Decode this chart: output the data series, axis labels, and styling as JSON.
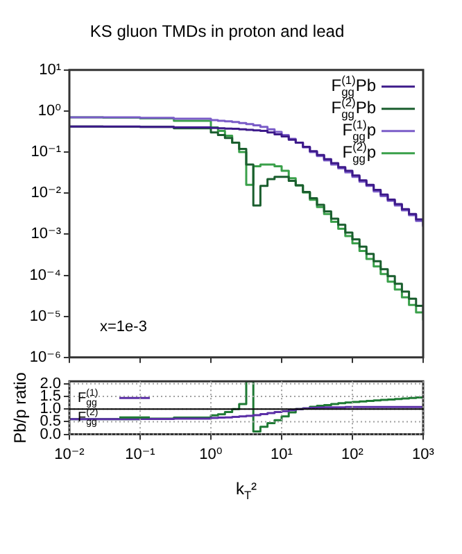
{
  "chart_data": [
    {
      "type": "step",
      "title": "KS gluon TMDs in proton and lead",
      "x": [
        0.01,
        0.03,
        0.1,
        0.3,
        1,
        1.26,
        1.58,
        2,
        2.51,
        3.16,
        3.98,
        5.01,
        6.31,
        7.94,
        10,
        12.6,
        15.8,
        20,
        25.1,
        31.6,
        39.8,
        50.1,
        63.1,
        79.4,
        100,
        126,
        158,
        200,
        251,
        316,
        398,
        501,
        631,
        794,
        1000
      ],
      "series": [
        {
          "name": "F$_{gg}$$^{(1)}$Pb",
          "color": "#3d1a8a",
          "values": [
            0.42,
            0.42,
            0.41,
            0.4,
            0.39,
            0.38,
            0.375,
            0.37,
            0.36,
            0.35,
            0.34,
            0.33,
            0.3,
            0.27,
            0.24,
            0.2,
            0.17,
            0.134,
            0.105,
            0.085,
            0.067,
            0.054,
            0.043,
            0.035,
            0.027,
            0.0205,
            0.016,
            0.012,
            0.0092,
            0.007,
            0.0054,
            0.0041,
            0.0031,
            0.0023,
            0.0016
          ]
        },
        {
          "name": "F$_{gg}$$^{(2)}$Pb",
          "color": "#1a5e2e",
          "values": [
            0.42,
            0.415,
            0.41,
            0.38,
            0.3,
            0.26,
            0.22,
            0.17,
            0.12,
            0.05,
            0.005,
            0.015,
            0.022,
            0.025,
            0.025,
            0.02,
            0.0155,
            0.0107,
            0.0075,
            0.0052,
            0.0036,
            0.0024,
            0.0017,
            0.0011,
            0.00075,
            0.0005,
            0.00033,
            0.00022,
            0.00014,
            9.5e-05,
            6.2e-05,
            4e-05,
            2.7e-05,
            1.8e-05,
            1.2e-05
          ]
        },
        {
          "name": "F$_{gg}$$^{(1)}$p",
          "color": "#7a5cc8",
          "values": [
            0.7,
            0.7,
            0.68,
            0.65,
            0.6,
            0.58,
            0.56,
            0.54,
            0.51,
            0.48,
            0.45,
            0.41,
            0.36,
            0.31,
            0.26,
            0.21,
            0.17,
            0.13,
            0.1,
            0.08,
            0.063,
            0.05,
            0.04,
            0.032,
            0.025,
            0.019,
            0.015,
            0.011,
            0.0085,
            0.0065,
            0.005,
            0.0038,
            0.0029,
            0.0021,
            0.0015
          ]
        },
        {
          "name": "F$_{gg}$$^{(2)}$p",
          "color": "#3aa04a",
          "values": [
            0.7,
            0.69,
            0.66,
            0.58,
            0.4,
            0.33,
            0.25,
            0.17,
            0.1,
            0.016,
            0.045,
            0.05,
            0.05,
            0.045,
            0.035,
            0.023,
            0.0155,
            0.0104,
            0.0069,
            0.0046,
            0.0031,
            0.002,
            0.00136,
            0.0009,
            0.0006,
            0.00039,
            0.00025,
            0.000165,
            0.000107,
            7e-05,
            4.5e-05,
            2.9e-05,
            1.9e-05,
            1.25e-05,
            8e-06
          ]
        }
      ],
      "xlim": [
        0.01,
        1000
      ],
      "xticks": [
        0.01,
        0.1,
        1,
        10,
        100,
        1000
      ],
      "ylim": [
        1e-06,
        10
      ],
      "yticks": [
        {
          "value": 1e-06,
          "label": "10⁻⁶"
        },
        {
          "value": 1e-05,
          "label": "10⁻⁵"
        },
        {
          "value": 0.0001,
          "label": "10⁻⁴"
        },
        {
          "value": 0.001,
          "label": "10⁻³"
        },
        {
          "value": 0.01,
          "label": "10⁻²"
        },
        {
          "value": 0.1,
          "label": "10⁻¹"
        },
        {
          "value": 1,
          "label": "10⁰"
        },
        {
          "value": 10,
          "label": "10¹"
        }
      ],
      "log": "xy",
      "tick_labels": "y",
      "legend": "top right",
      "annotations": [
        "x=1e-3"
      ]
    },
    {
      "type": "step",
      "ylabel": "Pb/p ratio",
      "xlabel": "k$_{T}$²",
      "x": [
        0.01,
        0.03,
        0.1,
        0.3,
        1,
        1.26,
        1.58,
        2,
        2.51,
        3.16,
        3.98,
        5.01,
        6.31,
        7.94,
        10,
        12.6,
        15.8,
        20,
        25.1,
        31.6,
        39.8,
        50.1,
        63.1,
        79.4,
        100,
        126,
        158,
        200,
        251,
        316,
        398,
        501,
        631,
        794,
        1000
      ],
      "series": [
        {
          "name": "F$_{gg}$$^{(1)}$",
          "color": "#5b2fa6",
          "values": [
            0.6,
            0.6,
            0.61,
            0.62,
            0.65,
            0.66,
            0.67,
            0.69,
            0.71,
            0.73,
            0.76,
            0.8,
            0.84,
            0.88,
            0.92,
            0.96,
            1.0,
            1.03,
            1.05,
            1.06,
            1.07,
            1.07,
            1.07,
            1.08,
            1.08,
            1.08,
            1.08,
            1.08,
            1.08,
            1.08,
            1.08,
            1.08,
            1.08,
            1.08,
            1.08
          ]
        },
        {
          "name": "F$_{gg}$$^{(2)}$",
          "color": "#1e7a34",
          "values": [
            0.6,
            0.6,
            0.62,
            0.66,
            0.75,
            0.79,
            0.88,
            1.0,
            1.2,
            2.1,
            0.11,
            0.3,
            0.44,
            0.56,
            0.71,
            0.87,
            1.0,
            1.03,
            1.09,
            1.13,
            1.16,
            1.2,
            1.23,
            1.26,
            1.28,
            1.3,
            1.32,
            1.34,
            1.36,
            1.38,
            1.4,
            1.42,
            1.44,
            1.46,
            1.48
          ]
        }
      ],
      "xlim": [
        0.01,
        1000
      ],
      "xticks": [
        {
          "value": 0.01,
          "label": "10⁻²"
        },
        {
          "value": 0.1,
          "label": "10⁻¹"
        },
        {
          "value": 1,
          "label": "10⁰"
        },
        {
          "value": 10,
          "label": "10¹"
        },
        {
          "value": 100,
          "label": "10²"
        },
        {
          "value": 1000,
          "label": "10³"
        }
      ],
      "ylim": [
        0,
        2.1
      ],
      "yticks": [
        {
          "value": 0,
          "label": "0.0"
        },
        {
          "value": 0.5,
          "label": "0.5"
        },
        {
          "value": 1,
          "label": "1.0"
        },
        {
          "value": 1.5,
          "label": "1.5"
        },
        {
          "value": 2,
          "label": "2.0"
        }
      ],
      "log": "x",
      "grid": true,
      "legend": "top left",
      "ref_lines": [
        {
          "axis": "y",
          "value": 1,
          "color": "#000000"
        }
      ]
    }
  ]
}
